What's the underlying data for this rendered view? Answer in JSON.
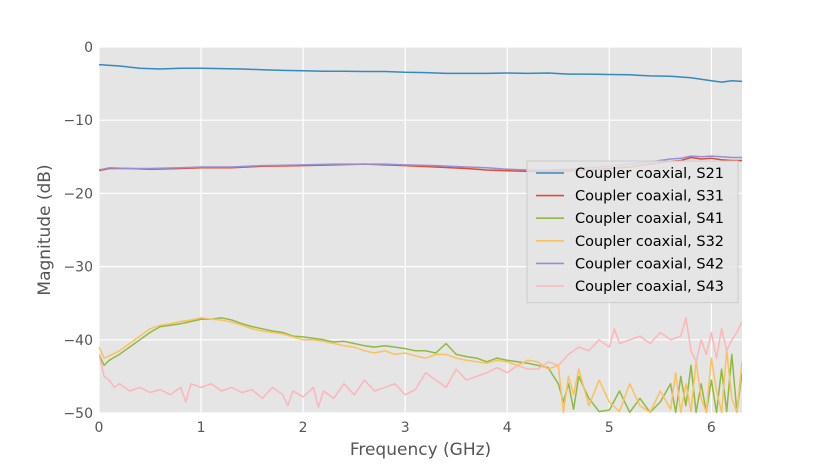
{
  "chart_data": {
    "type": "line",
    "xlabel": "Frequency (GHz)",
    "ylabel": "Magnitude (dB)",
    "xlim": [
      0,
      6.3
    ],
    "ylim": [
      -50,
      0
    ],
    "xticks": [
      {
        "value": 0,
        "label": "0"
      },
      {
        "value": 1,
        "label": "1"
      },
      {
        "value": 2,
        "label": "2"
      },
      {
        "value": 3,
        "label": "3"
      },
      {
        "value": 4,
        "label": "4"
      },
      {
        "value": 5,
        "label": "5"
      },
      {
        "value": 6,
        "label": "6"
      }
    ],
    "yticks": [
      {
        "value": 0,
        "label": "0"
      },
      {
        "value": -10,
        "label": "−10"
      },
      {
        "value": -20,
        "label": "−20"
      },
      {
        "value": -30,
        "label": "−30"
      },
      {
        "value": -40,
        "label": "−40"
      },
      {
        "value": -50,
        "label": "−50"
      }
    ],
    "grid": true,
    "legend": "right",
    "background": "#e5e5e5",
    "grid_color": "#ffffff",
    "series": [
      {
        "name": "Coupler coaxial, S21",
        "color": "#348abd",
        "x": [
          0.0,
          0.2,
          0.4,
          0.6,
          0.8,
          1.0,
          1.2,
          1.4,
          1.6,
          1.8,
          2.0,
          2.2,
          2.4,
          2.6,
          2.8,
          3.0,
          3.2,
          3.4,
          3.6,
          3.8,
          4.0,
          4.2,
          4.4,
          4.6,
          4.8,
          5.0,
          5.2,
          5.4,
          5.6,
          5.8,
          6.0,
          6.1,
          6.2,
          6.3
        ],
        "y": [
          -2.4,
          -2.6,
          -2.9,
          -3.0,
          -2.9,
          -2.9,
          -2.95,
          -3.0,
          -3.1,
          -3.2,
          -3.25,
          -3.3,
          -3.3,
          -3.35,
          -3.35,
          -3.45,
          -3.5,
          -3.6,
          -3.6,
          -3.6,
          -3.55,
          -3.6,
          -3.55,
          -3.7,
          -3.7,
          -3.75,
          -3.8,
          -3.95,
          -4.0,
          -4.2,
          -4.6,
          -4.8,
          -4.6,
          -4.7
        ]
      },
      {
        "name": "Coupler coaxial, S31",
        "color": "#e24a33",
        "x": [
          0.0,
          0.1,
          0.3,
          0.5,
          0.8,
          1.0,
          1.3,
          1.6,
          2.0,
          2.3,
          2.6,
          2.8,
          3.0,
          3.3,
          3.6,
          3.8,
          4.0,
          4.2,
          4.4,
          4.6,
          4.8,
          5.0,
          5.2,
          5.4,
          5.6,
          5.7,
          5.8,
          5.9,
          6.0,
          6.1,
          6.2,
          6.3
        ],
        "y": [
          -16.9,
          -16.6,
          -16.6,
          -16.7,
          -16.6,
          -16.5,
          -16.5,
          -16.3,
          -16.2,
          -16.1,
          -16.0,
          -16.1,
          -16.2,
          -16.4,
          -16.6,
          -16.8,
          -16.9,
          -17.0,
          -17.0,
          -16.9,
          -16.8,
          -16.6,
          -16.4,
          -16.0,
          -15.6,
          -15.5,
          -15.1,
          -15.3,
          -15.2,
          -15.4,
          -15.5,
          -15.5
        ]
      },
      {
        "name": "Coupler coaxial, S41",
        "color": "#8eba42",
        "x": [
          0.0,
          0.05,
          0.1,
          0.2,
          0.3,
          0.4,
          0.5,
          0.6,
          0.7,
          0.8,
          0.9,
          1.0,
          1.1,
          1.2,
          1.3,
          1.4,
          1.5,
          1.6,
          1.7,
          1.8,
          1.9,
          2.0,
          2.1,
          2.2,
          2.3,
          2.4,
          2.5,
          2.6,
          2.7,
          2.8,
          2.9,
          3.0,
          3.1,
          3.2,
          3.3,
          3.4,
          3.5,
          3.6,
          3.7,
          3.8,
          3.9,
          4.0,
          4.1,
          4.2,
          4.3,
          4.4,
          4.5,
          4.55,
          4.6,
          4.65,
          4.7,
          4.8,
          4.9,
          5.0,
          5.1,
          5.2,
          5.3,
          5.4,
          5.5,
          5.6,
          5.65,
          5.7,
          5.75,
          5.8,
          5.85,
          5.9,
          5.95,
          6.0,
          6.05,
          6.1,
          6.15,
          6.2,
          6.25,
          6.3
        ],
        "y": [
          -42.0,
          -43.5,
          -42.8,
          -42.0,
          -41.0,
          -40.0,
          -39.0,
          -38.2,
          -38.0,
          -37.8,
          -37.5,
          -37.2,
          -37.2,
          -37.0,
          -37.3,
          -37.8,
          -38.2,
          -38.5,
          -38.8,
          -39.0,
          -39.5,
          -39.6,
          -39.8,
          -40.0,
          -40.3,
          -40.2,
          -40.5,
          -40.8,
          -41.0,
          -40.8,
          -41.0,
          -41.2,
          -41.5,
          -41.5,
          -41.8,
          -40.5,
          -42.0,
          -42.3,
          -42.5,
          -43.0,
          -42.5,
          -42.8,
          -43.0,
          -43.2,
          -43.5,
          -43.8,
          -46.0,
          -48.5,
          -46.0,
          -49.5,
          -45.0,
          -48.0,
          -49.8,
          -49.6,
          -47.0,
          -49.9,
          -48.0,
          -49.9,
          -48.5,
          -46.0,
          -49.9,
          -45.0,
          -49.0,
          -43.5,
          -49.9,
          -46.0,
          -49.9,
          -45.5,
          -49.9,
          -44.0,
          -49.8,
          -42.0,
          -49.9,
          -44.5
        ]
      },
      {
        "name": "Coupler coaxial, S32",
        "color": "#fbc15e",
        "x": [
          0.0,
          0.05,
          0.1,
          0.2,
          0.3,
          0.4,
          0.5,
          0.6,
          0.7,
          0.8,
          0.9,
          1.0,
          1.1,
          1.2,
          1.3,
          1.4,
          1.5,
          1.6,
          1.7,
          1.8,
          1.9,
          2.0,
          2.1,
          2.2,
          2.3,
          2.4,
          2.5,
          2.6,
          2.7,
          2.8,
          2.9,
          3.0,
          3.1,
          3.2,
          3.3,
          3.4,
          3.5,
          3.6,
          3.7,
          3.8,
          3.9,
          4.0,
          4.1,
          4.2,
          4.3,
          4.4,
          4.5,
          4.55,
          4.6,
          4.65,
          4.7,
          4.8,
          4.9,
          5.0,
          5.1,
          5.2,
          5.3,
          5.4,
          5.5,
          5.6,
          5.65,
          5.7,
          5.75,
          5.8,
          5.85,
          5.9,
          5.95,
          6.0,
          6.05,
          6.1,
          6.15,
          6.2,
          6.25,
          6.3
        ],
        "y": [
          -41.0,
          -42.5,
          -42.2,
          -41.5,
          -40.5,
          -39.5,
          -38.5,
          -38.0,
          -37.8,
          -37.5,
          -37.3,
          -37.0,
          -37.2,
          -37.3,
          -37.6,
          -38.0,
          -38.5,
          -38.8,
          -39.0,
          -39.2,
          -39.6,
          -40.0,
          -40.0,
          -40.2,
          -40.5,
          -40.8,
          -41.0,
          -41.5,
          -41.8,
          -41.5,
          -42.0,
          -41.8,
          -42.2,
          -42.5,
          -42.0,
          -42.0,
          -42.5,
          -42.8,
          -43.0,
          -43.2,
          -42.8,
          -43.0,
          -43.5,
          -42.8,
          -43.0,
          -44.0,
          -43.5,
          -49.9,
          -45.0,
          -47.5,
          -44.0,
          -49.0,
          -45.5,
          -48.5,
          -49.8,
          -46.0,
          -49.0,
          -49.9,
          -47.0,
          -49.5,
          -44.5,
          -49.9,
          -46.0,
          -49.8,
          -43.0,
          -48.0,
          -49.9,
          -42.5,
          -47.0,
          -49.9,
          -41.5,
          -48.0,
          -49.9,
          -43.0
        ]
      },
      {
        "name": "Coupler coaxial, S42",
        "color": "#988ed5",
        "x": [
          0.0,
          0.1,
          0.3,
          0.5,
          0.8,
          1.0,
          1.3,
          1.6,
          2.0,
          2.3,
          2.6,
          2.8,
          3.0,
          3.3,
          3.6,
          3.8,
          4.0,
          4.2,
          4.4,
          4.6,
          4.8,
          5.0,
          5.2,
          5.4,
          5.6,
          5.7,
          5.8,
          5.9,
          6.0,
          6.1,
          6.2,
          6.3
        ],
        "y": [
          -16.8,
          -16.5,
          -16.6,
          -16.6,
          -16.5,
          -16.4,
          -16.4,
          -16.2,
          -16.1,
          -16.0,
          -16.0,
          -16.0,
          -16.1,
          -16.2,
          -16.4,
          -16.5,
          -16.7,
          -16.8,
          -16.8,
          -16.7,
          -16.5,
          -16.3,
          -16.0,
          -15.7,
          -15.3,
          -15.2,
          -14.9,
          -15.0,
          -14.9,
          -15.0,
          -15.1,
          -15.1
        ]
      },
      {
        "name": "Coupler coaxial, S43",
        "color": "#ffb5b8",
        "x": [
          0.0,
          0.05,
          0.1,
          0.15,
          0.2,
          0.3,
          0.4,
          0.5,
          0.6,
          0.7,
          0.8,
          0.85,
          0.9,
          1.0,
          1.1,
          1.2,
          1.3,
          1.4,
          1.5,
          1.6,
          1.7,
          1.8,
          1.85,
          1.9,
          2.0,
          2.1,
          2.15,
          2.2,
          2.3,
          2.4,
          2.5,
          2.6,
          2.7,
          2.8,
          2.9,
          3.0,
          3.1,
          3.2,
          3.3,
          3.4,
          3.5,
          3.6,
          3.7,
          3.8,
          3.9,
          4.0,
          4.1,
          4.2,
          4.3,
          4.4,
          4.5,
          4.6,
          4.7,
          4.8,
          4.9,
          5.0,
          5.05,
          5.1,
          5.2,
          5.3,
          5.4,
          5.5,
          5.6,
          5.7,
          5.75,
          5.8,
          5.85,
          5.9,
          5.95,
          6.0,
          6.05,
          6.1,
          6.15,
          6.2,
          6.25,
          6.3
        ],
        "y": [
          -42.0,
          -45.0,
          -45.5,
          -46.5,
          -46.0,
          -47.0,
          -46.5,
          -47.2,
          -46.8,
          -47.5,
          -46.5,
          -48.5,
          -46.0,
          -46.5,
          -46.0,
          -47.0,
          -46.5,
          -47.2,
          -46.8,
          -48.0,
          -46.5,
          -47.5,
          -49.0,
          -47.0,
          -47.8,
          -46.5,
          -49.2,
          -47.0,
          -48.0,
          -46.0,
          -47.5,
          -45.5,
          -47.0,
          -46.5,
          -46.0,
          -47.5,
          -46.8,
          -44.5,
          -45.5,
          -46.5,
          -44.0,
          -45.5,
          -45.0,
          -44.5,
          -43.8,
          -44.5,
          -43.5,
          -44.0,
          -44.0,
          -43.0,
          -43.5,
          -42.0,
          -41.0,
          -41.5,
          -40.0,
          -41.0,
          -38.5,
          -40.5,
          -40.0,
          -39.5,
          -40.5,
          -39.0,
          -40.0,
          -39.5,
          -37.0,
          -41.5,
          -43.0,
          -40.0,
          -42.0,
          -39.0,
          -42.5,
          -38.5,
          -41.5,
          -40.0,
          -39.0,
          -37.5
        ]
      }
    ]
  }
}
